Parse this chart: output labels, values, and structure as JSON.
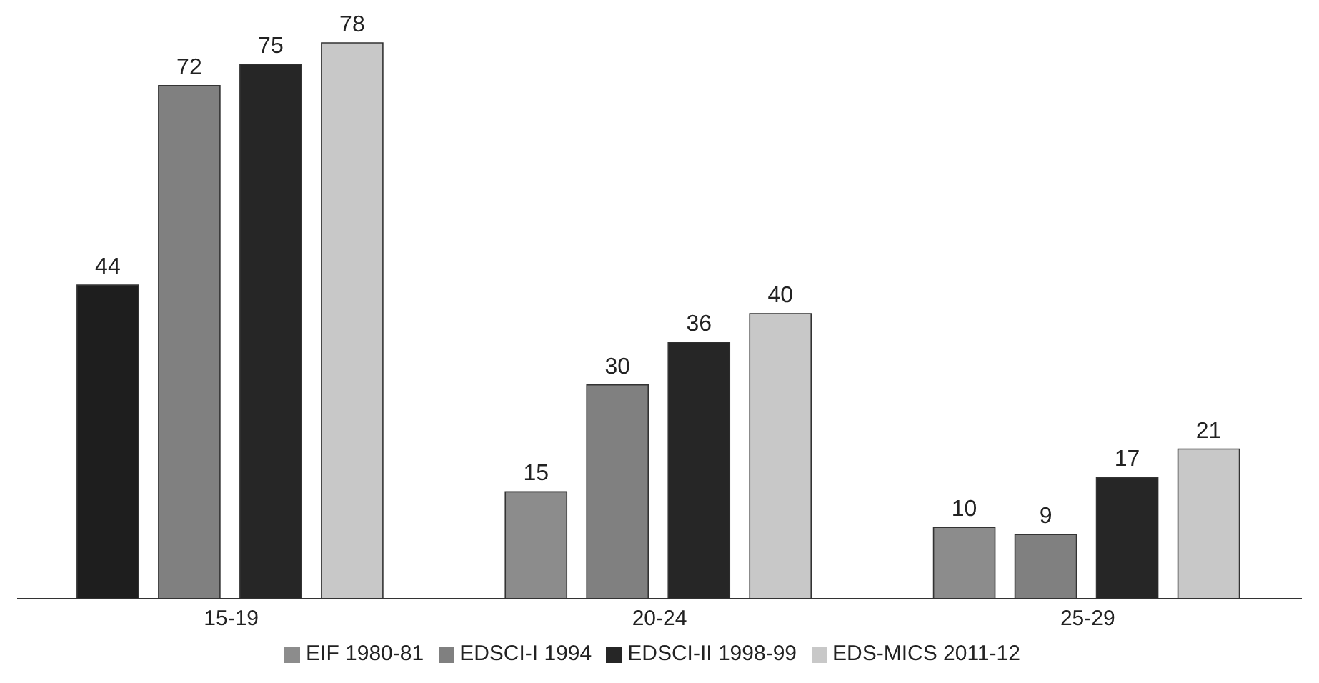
{
  "chart_data": {
    "type": "bar",
    "categories": [
      "15-19",
      "20-24",
      "25-29"
    ],
    "series": [
      {
        "name": "EIF 1980-81",
        "color": "#8c8c8c",
        "colors": [
          "#1e1e1e",
          "#8c8c8c",
          "#8c8c8c"
        ],
        "values": [
          44,
          15,
          10
        ]
      },
      {
        "name": "EDSCI-I 1994",
        "color": "#808080",
        "values": [
          72,
          30,
          9
        ]
      },
      {
        "name": "EDSCI-II 1998-99",
        "color": "#262626",
        "values": [
          75,
          36,
          17
        ]
      },
      {
        "name": "EDS-MICS 2011-12",
        "color": "#c8c8c8",
        "values": [
          78,
          40,
          21
        ]
      }
    ],
    "data_labels": true,
    "legend": "bottom",
    "grid": false
  }
}
